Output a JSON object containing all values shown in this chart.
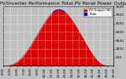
{
  "title": "Solar PV/Inverter Performance Total PV Panel Power Output",
  "bg_color": "#c0c0c0",
  "plot_bg_color": "#c0c0c0",
  "fill_color": "#dd0000",
  "line_color": "#aa0000",
  "peak_color": "#0000cc",
  "legend_labels": [
    "PV Output (W)",
    "Peak"
  ],
  "legend_colors": [
    "#dd0000",
    "#0000cc"
  ],
  "ylim": [
    0,
    3500
  ],
  "ytick_vals": [
    500,
    1000,
    1500,
    2000,
    2500,
    3000,
    3500
  ],
  "ytick_labels": [
    "500",
    "1000",
    "1500",
    "2000",
    "2500",
    "3000",
    "3500"
  ],
  "xtick_positions": [
    4,
    5,
    6,
    7,
    8,
    9,
    10,
    11,
    12,
    13,
    14,
    15,
    16,
    17,
    18,
    19,
    20
  ],
  "xtick_labels": [
    "4:00",
    "5:00",
    "6:00",
    "7:00",
    "8:00",
    "9:00",
    "10:00",
    "11:00",
    "12:00",
    "13:00",
    "14:00",
    "15:00",
    "16:00",
    "17:00",
    "18:00",
    "19:00",
    "20:00"
  ],
  "x_hours": [
    4.0,
    4.25,
    4.5,
    4.75,
    5.0,
    5.25,
    5.5,
    5.75,
    6.0,
    6.25,
    6.5,
    6.75,
    7.0,
    7.25,
    7.5,
    7.75,
    8.0,
    8.25,
    8.5,
    8.75,
    9.0,
    9.25,
    9.5,
    9.75,
    10.0,
    10.25,
    10.5,
    10.75,
    11.0,
    11.25,
    11.5,
    11.75,
    12.0,
    12.25,
    12.5,
    12.75,
    13.0,
    13.25,
    13.5,
    13.75,
    14.0,
    14.25,
    14.5,
    14.75,
    15.0,
    15.25,
    15.5,
    15.75,
    16.0,
    16.25,
    16.5,
    16.75,
    17.0,
    17.25,
    17.5,
    17.75,
    18.0,
    18.25,
    18.5,
    18.75,
    19.0,
    19.25,
    19.5,
    19.75,
    20.0
  ],
  "y_values": [
    0,
    5,
    10,
    20,
    40,
    70,
    110,
    160,
    230,
    310,
    400,
    510,
    630,
    760,
    900,
    1050,
    1200,
    1370,
    1540,
    1710,
    1880,
    2050,
    2220,
    2390,
    2550,
    2700,
    2840,
    2970,
    3080,
    3170,
    3240,
    3290,
    3310,
    3300,
    3270,
    3220,
    3150,
    3060,
    2950,
    2820,
    2680,
    2530,
    2370,
    2200,
    2020,
    1840,
    1660,
    1480,
    1300,
    1130,
    960,
    800,
    650,
    510,
    380,
    270,
    180,
    110,
    60,
    30,
    15,
    5,
    2,
    0,
    0
  ],
  "grid_color": "#ffffff",
  "title_fontsize": 4.5,
  "tick_fontsize": 3.2,
  "xlim": [
    4.0,
    20.0
  ]
}
